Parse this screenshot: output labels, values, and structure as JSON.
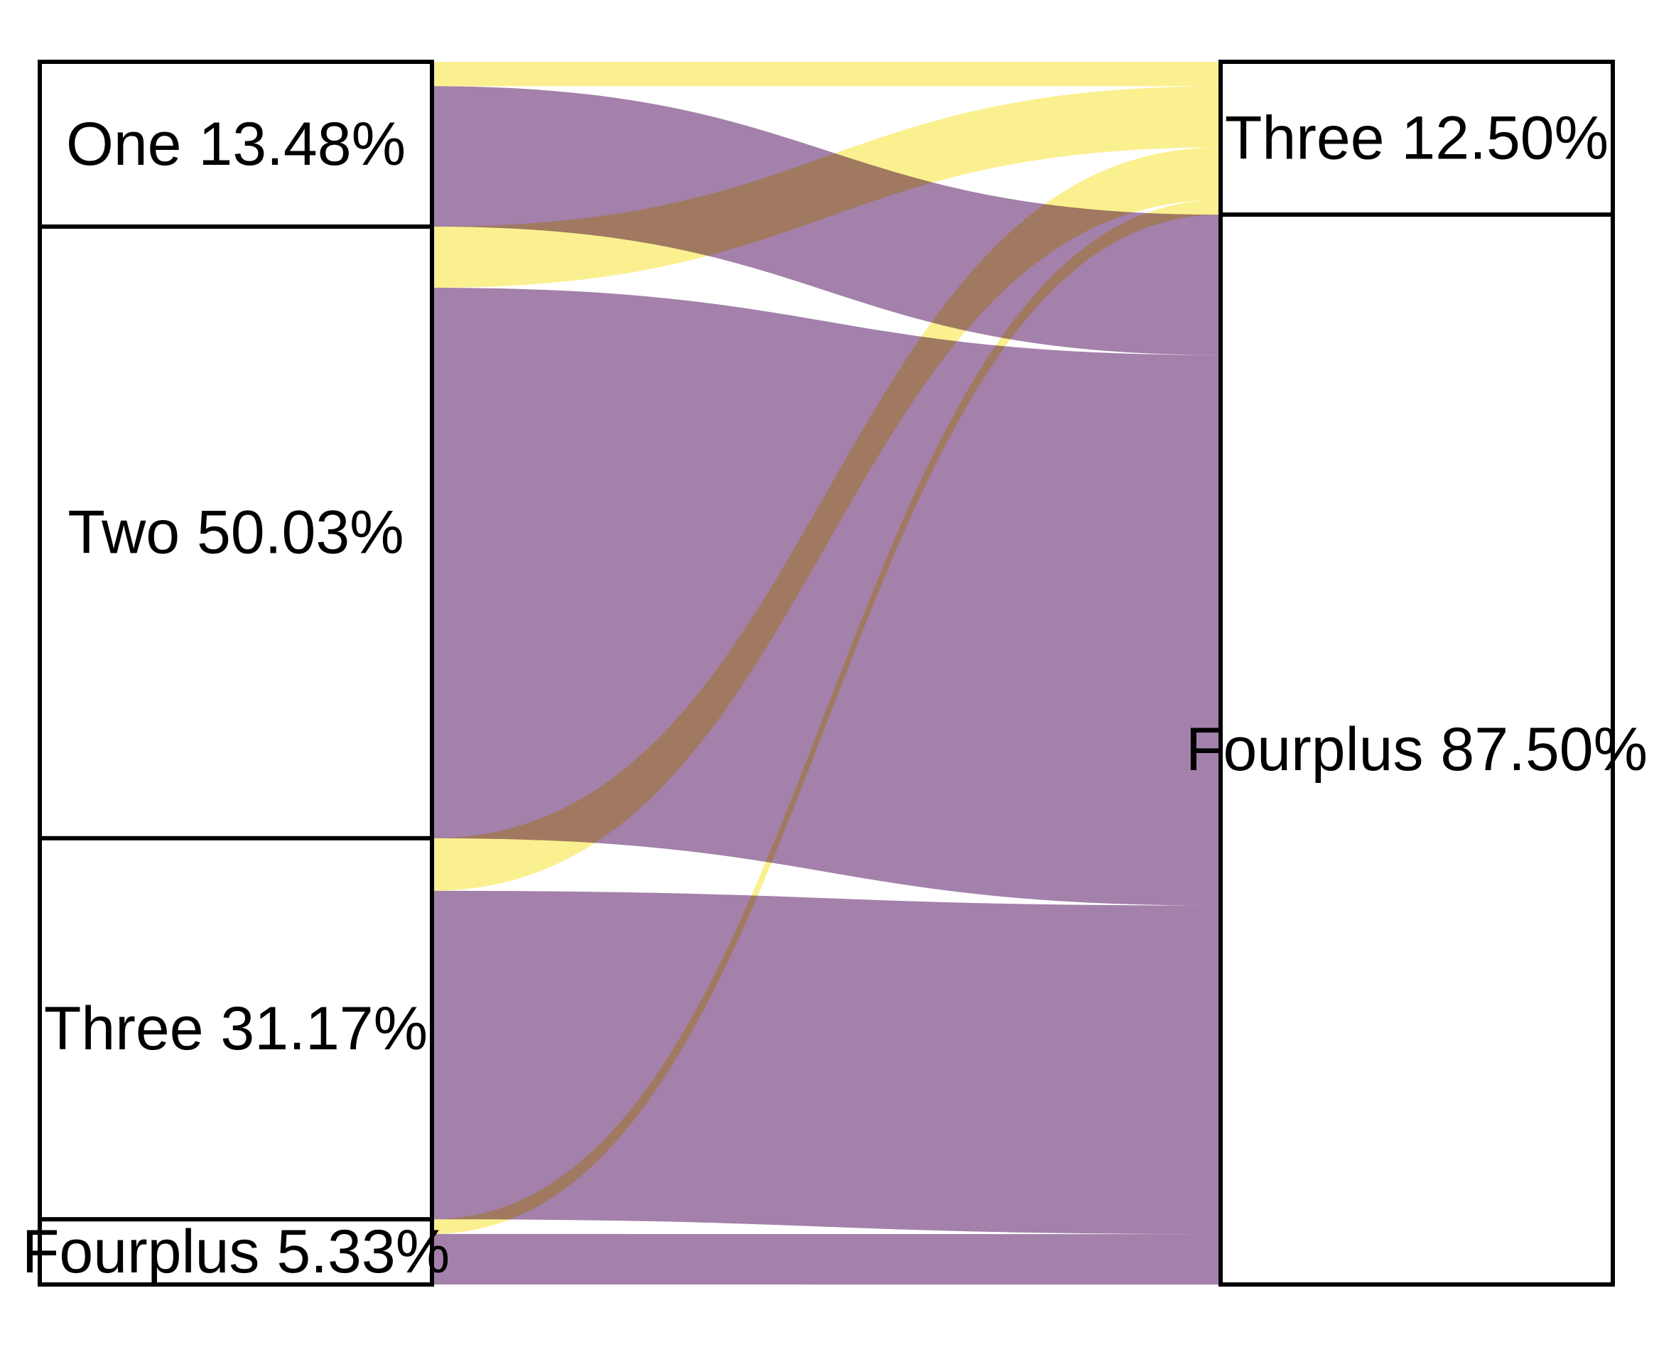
{
  "chart_data": {
    "type": "alluvial",
    "colors": {
      "Three": "#fbf090",
      "Fourplus": "#a381aa",
      "overlap": "#cdb06b"
    },
    "left_axis": {
      "nodes": [
        {
          "name": "One",
          "label": "One 13.48%",
          "value": 13.48
        },
        {
          "name": "Two",
          "label": "Two 50.03%",
          "value": 50.03
        },
        {
          "name": "Three",
          "label": "Three 31.17%",
          "value": 31.17
        },
        {
          "name": "Fourplus",
          "label": "Fourplus 5.33%",
          "value": 5.33
        }
      ]
    },
    "right_axis": {
      "nodes": [
        {
          "name": "Three",
          "label": "Three 12.50%",
          "value": 12.5
        },
        {
          "name": "Fourplus",
          "label": "Fourplus 87.50%",
          "value": 87.5
        }
      ]
    },
    "flows": [
      {
        "from": "One",
        "to": "Three",
        "value": 2.0
      },
      {
        "from": "One",
        "to": "Fourplus",
        "value": 11.48
      },
      {
        "from": "Two",
        "to": "Three",
        "value": 5.0
      },
      {
        "from": "Two",
        "to": "Fourplus",
        "value": 45.03
      },
      {
        "from": "Three",
        "to": "Three",
        "value": 4.3
      },
      {
        "from": "Three",
        "to": "Fourplus",
        "value": 26.87
      },
      {
        "from": "Fourplus",
        "to": "Three",
        "value": 1.2
      },
      {
        "from": "Fourplus",
        "to": "Fourplus",
        "value": 4.13
      }
    ]
  }
}
